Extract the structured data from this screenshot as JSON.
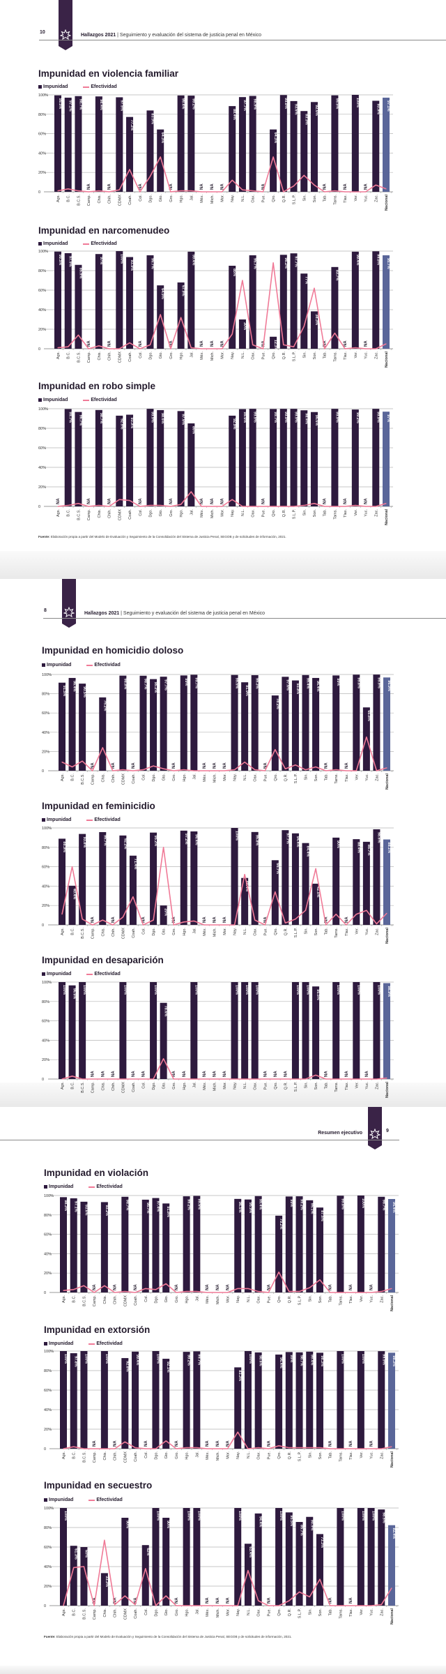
{
  "pages": [
    {
      "number": "10",
      "header_bold": "Hallazgos 2021",
      "header_rest": "| Seguimiento y evaluación del sistema de justicia penal en México"
    },
    {
      "number": "8",
      "header_bold": "Hallazgos 2021",
      "header_rest": "| Seguimiento y evaluación del sistema de justicia penal en México"
    },
    {
      "number": "9",
      "header_bold": "Resumen ejecutivo"
    }
  ],
  "footnote": {
    "label": "Fuente:",
    "text": "Elaboración propia a partir del Modelo de Evaluación y Seguimiento de la Consolidación del Sistema de Justicia Penal, SEGOB y de solicitudes de información, 2021."
  },
  "colors": {
    "bar": "#2e1a3e",
    "national_bar": "#5a6699",
    "line": "#f07a97",
    "ribbon": "#3a2347"
  },
  "icons": {
    "ribbon": "star-outline-icon"
  },
  "categories": [
    "Ags.",
    "B.C.",
    "B.C.S.",
    "Camp.",
    "Chis.",
    "Chih.",
    "CDMX",
    "Coah.",
    "Col.",
    "Dgo.",
    "Gto.",
    "Gro.",
    "Hgo.",
    "Jal.",
    "Méx.",
    "Mich.",
    "Mor.",
    "Nay.",
    "N.L.",
    "Oax.",
    "Pue.",
    "Qro.",
    "Q.R.",
    "S.L.P.",
    "Sin.",
    "Son.",
    "Tab.",
    "Tams.",
    "Tlax.",
    "Ver.",
    "Yuc.",
    "Zac.",
    "Nacional"
  ],
  "chart_data": [
    {
      "type": "bar",
      "title": "Impunidad en violencia familiar",
      "ylim": [
        0,
        100
      ],
      "yticks": [
        "0",
        "20%",
        "40%",
        "60%",
        "80%",
        "100%"
      ],
      "na_label": "NA",
      "legend": "top-left",
      "grid": true,
      "series": [
        {
          "name": "Impunidad",
          "type": "bar",
          "values": [
            99.5,
            97.1,
            98.7,
            null,
            98.4,
            null,
            97.5,
            77.2,
            null,
            83.9,
            64.3,
            null,
            99.4,
            99.2,
            null,
            null,
            null,
            88.4,
            97.7,
            98.9,
            null,
            64.3,
            99.8,
            93.6,
            83.3,
            92.6,
            null,
            99.5,
            null,
            100,
            null,
            93.9,
            97.1
          ]
        },
        {
          "name": "Efectividad",
          "type": "line",
          "values": [
            1,
            3,
            1,
            0,
            1,
            0,
            2,
            23,
            0,
            16,
            36,
            0,
            1,
            1,
            0,
            0,
            0,
            12,
            2,
            1,
            0,
            36,
            0,
            6,
            17,
            7,
            0,
            1,
            0,
            0,
            0,
            7,
            3
          ]
        }
      ]
    },
    {
      "type": "bar",
      "title": "Impunidad en narcomenudeo",
      "ylim": [
        0,
        100
      ],
      "yticks": [
        "0",
        "20%",
        "40%",
        "60%",
        "80%",
        "100%"
      ],
      "na_label": "NA",
      "legend": "top-left",
      "grid": true,
      "series": [
        {
          "name": "Impunidad",
          "type": "bar",
          "values": [
            99.5,
            97.9,
            85.9,
            null,
            97,
            null,
            100,
            93.9,
            null,
            95.7,
            64.9,
            null,
            67.9,
            99.4,
            null,
            null,
            null,
            85,
            30,
            95.7,
            null,
            12.3,
            96.2,
            97.7,
            77,
            38.3,
            null,
            83.7,
            null,
            99.4,
            null,
            99.8,
            95.7
          ]
        },
        {
          "name": "Efectividad",
          "type": "line",
          "values": [
            1,
            2,
            14,
            0,
            3,
            0,
            0,
            6,
            0,
            4,
            35,
            0,
            32,
            1,
            0,
            0,
            0,
            15,
            70,
            4,
            0,
            88,
            4,
            2,
            23,
            62,
            0,
            16,
            0,
            1,
            0,
            0,
            5
          ]
        }
      ]
    },
    {
      "type": "bar",
      "title": "Impunidad en robo simple",
      "ylim": [
        0,
        100
      ],
      "yticks": [
        "0",
        "20%",
        "40%",
        "60%",
        "80%",
        "100%"
      ],
      "na_label": "NA",
      "legend": "top-left",
      "grid": true,
      "series": [
        {
          "name": "Impunidad",
          "type": "bar",
          "values": [
            null,
            99.7,
            96.7,
            null,
            98.7,
            null,
            92.9,
            93.9,
            null,
            99.9,
            98.6,
            null,
            97.6,
            85,
            null,
            null,
            null,
            92.9,
            99.6,
            99.9,
            null,
            99.7,
            99.9,
            99.9,
            98.4,
            96.6,
            null,
            99.9,
            null,
            99.2,
            null,
            99.9,
            97
          ]
        },
        {
          "name": "Efectividad",
          "type": "line",
          "values": [
            0,
            1,
            3,
            0,
            1,
            0,
            7,
            6,
            0,
            1,
            1,
            0,
            2,
            15,
            0,
            0,
            0,
            7,
            0,
            0,
            0,
            0,
            0,
            0,
            1,
            3,
            0,
            0,
            0,
            1,
            0,
            0,
            3
          ]
        }
      ]
    },
    {
      "type": "bar",
      "title": "Impunidad en homicidio doloso",
      "ylim": [
        0,
        100
      ],
      "yticks": [
        "0",
        "20%",
        "40%",
        "60%",
        "80%",
        "100%"
      ],
      "na_label": "NA",
      "legend": "top-left",
      "grid": true,
      "series": [
        {
          "name": "Impunidad",
          "type": "bar",
          "values": [
            91.5,
            96.4,
            90.5,
            null,
            76.2,
            null,
            98.8,
            null,
            98.7,
            95.2,
            97.7,
            null,
            99,
            99.7,
            null,
            null,
            null,
            99.5,
            91.9,
            99.3,
            null,
            78.2,
            97.6,
            93.8,
            99.4,
            96.4,
            null,
            99,
            null,
            99.8,
            65.8,
            99.9,
            96.9
          ]
        },
        {
          "name": "Efectividad",
          "type": "line",
          "values": [
            9,
            4,
            10,
            0,
            24,
            0,
            1,
            0,
            1,
            5,
            2,
            0,
            1,
            0,
            0,
            0,
            0,
            1,
            9,
            1,
            0,
            22,
            2,
            6,
            1,
            4,
            0,
            1,
            0,
            0,
            35,
            0,
            3
          ]
        }
      ]
    },
    {
      "type": "bar",
      "title": "Impunidad en feminicidio",
      "ylim": [
        0,
        100
      ],
      "yticks": [
        "0",
        "20%",
        "40%",
        "60%",
        "80%",
        "100%"
      ],
      "na_label": "NA",
      "legend": "top-left",
      "grid": true,
      "series": [
        {
          "name": "Impunidad",
          "type": "bar",
          "values": [
            88.9,
            40.4,
            93.8,
            null,
            95.7,
            null,
            92.2,
            71.4,
            null,
            95.2,
            20,
            null,
            97.2,
            96.4,
            null,
            null,
            null,
            100,
            48.4,
            95.8,
            null,
            66.7,
            97.7,
            94.4,
            84.4,
            42.5,
            null,
            90,
            null,
            88.4,
            85.7,
            98.6,
            88.1
          ]
        },
        {
          "name": "Efectividad",
          "type": "line",
          "values": [
            11,
            60,
            6,
            0,
            5,
            0,
            8,
            29,
            0,
            5,
            80,
            0,
            3,
            4,
            0,
            0,
            0,
            0,
            52,
            5,
            0,
            34,
            2,
            6,
            15,
            58,
            0,
            11,
            0,
            11,
            15,
            1,
            12
          ]
        }
      ]
    },
    {
      "type": "bar",
      "title": "Impunidad en desaparición",
      "ylim": [
        0,
        100
      ],
      "yticks": [
        "0",
        "20%",
        "40%",
        "60%",
        "80%",
        "100%"
      ],
      "na_label": "NA",
      "legend": "top-left",
      "grid": true,
      "series": [
        {
          "name": "Impunidad",
          "type": "bar",
          "values": [
            100,
            96.6,
            100,
            null,
            null,
            null,
            100,
            null,
            null,
            100,
            78.6,
            null,
            null,
            100,
            null,
            null,
            null,
            100,
            100,
            100,
            null,
            null,
            null,
            100,
            100,
            95.5,
            null,
            100,
            null,
            100,
            null,
            100,
            98.9
          ]
        },
        {
          "name": "Efectividad",
          "type": "line",
          "values": [
            0,
            3,
            0,
            0,
            0,
            0,
            0,
            0,
            0,
            0,
            21,
            0,
            0,
            0,
            0,
            0,
            0,
            0,
            0,
            0,
            0,
            0,
            0,
            0,
            0,
            4,
            0,
            0,
            0,
            0,
            0,
            0,
            1
          ]
        }
      ]
    },
    {
      "type": "bar",
      "title": "Impunidad en violación",
      "ylim": [
        0,
        100
      ],
      "yticks": [
        "0",
        "20%",
        "40%",
        "60%",
        "80%",
        "100%"
      ],
      "na_label": "NA",
      "legend": "top-left",
      "grid": true,
      "series": [
        {
          "name": "Impunidad",
          "type": "bar",
          "values": [
            98.3,
            97.1,
            93.6,
            null,
            93.2,
            null,
            98.7,
            null,
            95.7,
            97.4,
            91.8,
            null,
            99.2,
            99.6,
            null,
            null,
            null,
            96.5,
            95.9,
            99.4,
            null,
            79.2,
            99,
            99.2,
            95.1,
            87.6,
            null,
            99.8,
            null,
            100,
            null,
            98.7,
            96.4
          ]
        },
        {
          "name": "Efectividad",
          "type": "line",
          "values": [
            2,
            3,
            7,
            0,
            7,
            0,
            1,
            0,
            4,
            3,
            9,
            0,
            1,
            1,
            0,
            0,
            0,
            4,
            4,
            1,
            0,
            21,
            1,
            1,
            5,
            13,
            0,
            0,
            0,
            0,
            0,
            1,
            4
          ]
        }
      ]
    },
    {
      "type": "bar",
      "title": "Impunidad en extorsión",
      "ylim": [
        0,
        100
      ],
      "yticks": [
        "0",
        "20%",
        "40%",
        "60%",
        "80%",
        "100%"
      ],
      "na_label": "NA",
      "legend": "top-left",
      "grid": true,
      "series": [
        {
          "name": "Impunidad",
          "type": "bar",
          "values": [
            100,
            97.8,
            100,
            null,
            100,
            null,
            92.8,
            99.4,
            null,
            100,
            92.1,
            null,
            99.2,
            99.7,
            null,
            null,
            null,
            83.3,
            100,
            98.6,
            null,
            96.4,
            99,
            98.7,
            99.4,
            98.3,
            null,
            100,
            null,
            100,
            null,
            99.9,
            98.3
          ]
        },
        {
          "name": "Efectividad",
          "type": "line",
          "values": [
            0,
            2,
            0,
            0,
            0,
            0,
            7,
            1,
            0,
            0,
            8,
            0,
            1,
            1,
            0,
            0,
            0,
            17,
            0,
            1,
            0,
            3,
            1,
            1,
            1,
            1,
            0,
            0,
            0,
            0,
            0,
            0,
            2
          ]
        }
      ]
    },
    {
      "type": "bar",
      "title": "Impunidad en secuestro",
      "ylim": [
        0,
        100
      ],
      "yticks": [
        "0",
        "20%",
        "40%",
        "60%",
        "80%",
        "100%"
      ],
      "na_label": "NA",
      "legend": "top-left",
      "grid": true,
      "series": [
        {
          "name": "Impunidad",
          "type": "bar",
          "values": [
            100,
            61.3,
            60,
            null,
            33.3,
            null,
            90,
            null,
            62,
            100,
            90,
            null,
            100,
            100,
            null,
            null,
            null,
            100,
            63.4,
            94.4,
            null,
            100,
            95.5,
            85.7,
            90.9,
            73.3,
            null,
            100,
            null,
            100,
            100,
            98.5,
            82.4
          ]
        },
        {
          "name": "Efectividad",
          "type": "line",
          "values": [
            0,
            39,
            40,
            0,
            67,
            1,
            10,
            1,
            38,
            0,
            10,
            0,
            0,
            0,
            0,
            0,
            0,
            0,
            36,
            5,
            0,
            0,
            5,
            14,
            9,
            27,
            0,
            0,
            0,
            0,
            0,
            1,
            18
          ]
        }
      ]
    }
  ]
}
